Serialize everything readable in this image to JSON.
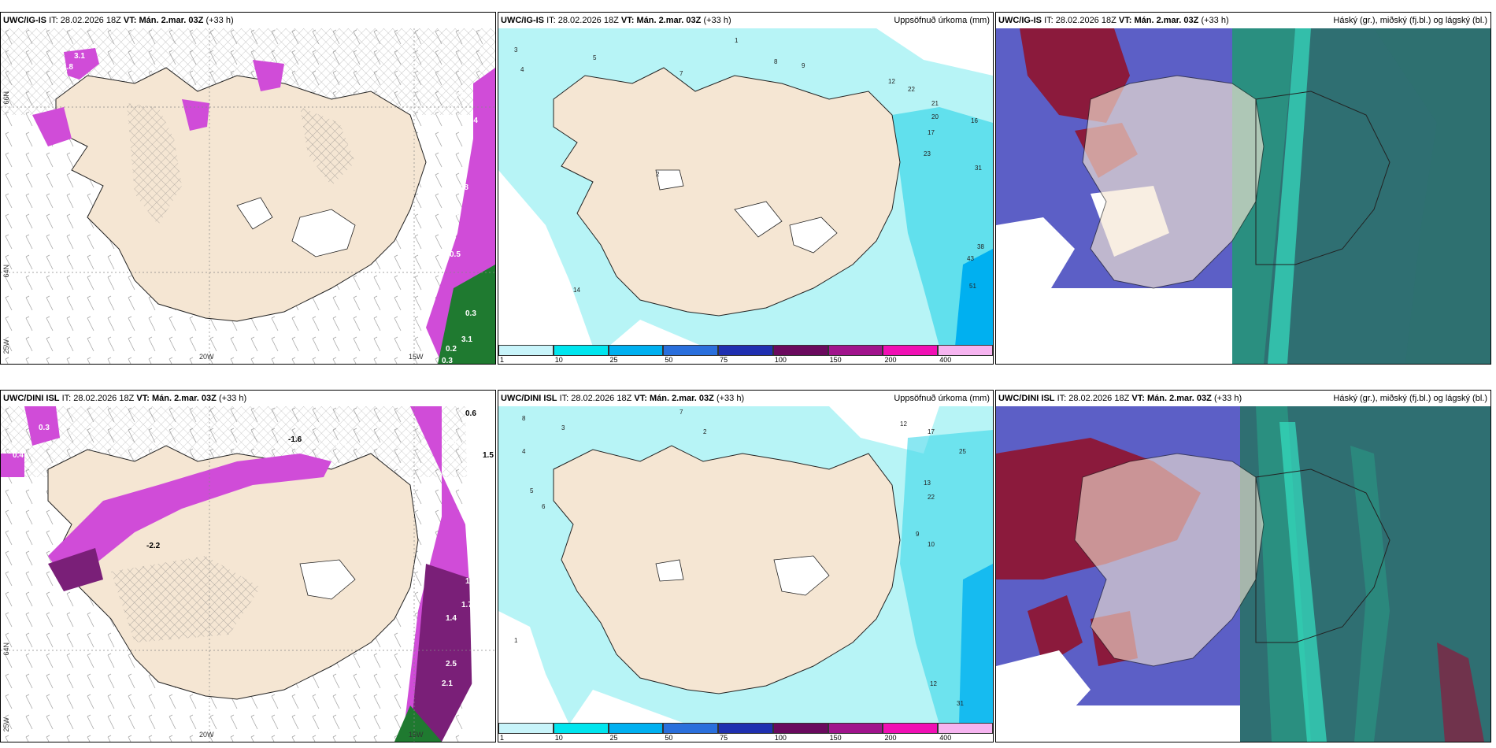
{
  "panels": [
    {
      "model": "UWC/IG-IS",
      "it_label": "IT:",
      "it": "28.02.2026 18Z",
      "vt_label": "VT:",
      "vt": "Mán. 2.mar. 03Z",
      "lead": "(+33 h)",
      "title_right": "",
      "lat_labels": [
        "66N",
        "64N"
      ],
      "lon_labels": [
        "20W",
        "15W",
        "25W"
      ],
      "values": [
        "3.1",
        "1.8",
        "0.3",
        "1.4",
        "0.6",
        "0.8",
        "0.5",
        "0.3",
        "0.2",
        "0.3",
        "3.1"
      ]
    },
    {
      "model": "UWC/IG-IS",
      "it_label": "IT:",
      "it": "28.02.2026 18Z",
      "vt_label": "VT:",
      "vt": "Mán. 2.mar. 03Z",
      "lead": "(+33 h)",
      "title_right": "Uppsöfnuð úrkoma (mm)",
      "values": [
        "1",
        "2",
        "3",
        "4",
        "5",
        "7",
        "8",
        "9",
        "12",
        "16",
        "17",
        "20",
        "21",
        "22",
        "23",
        "31",
        "38",
        "43",
        "51",
        "14"
      ]
    },
    {
      "model": "UWC/IG-IS",
      "it_label": "IT:",
      "it": "28.02.2026 18Z",
      "vt_label": "VT:",
      "vt": "Mán. 2.mar. 03Z",
      "lead": "(+33 h)",
      "title_right": "Háský (gr.), miðský (fj.bl.) og lágský (bl.)"
    },
    {
      "model": "UWC/DINI ISL",
      "it_label": "IT:",
      "it": "28.02.2026 18Z",
      "vt_label": "VT:",
      "vt": "Mán. 2.mar. 03Z",
      "lead": "(+33 h)",
      "title_right": "",
      "lat_labels": [
        "64N"
      ],
      "lon_labels": [
        "20W",
        "15W",
        "25W"
      ],
      "values": [
        "0.3",
        "0.6",
        "0.4",
        "-1.6",
        "0.5",
        "1.5",
        "-2.2",
        "1.9",
        "1.7",
        "1.4",
        "2.5",
        "2.1",
        "0.9"
      ]
    },
    {
      "model": "UWC/DINI ISL",
      "it_label": "IT:",
      "it": "28.02.2026 18Z",
      "vt_label": "VT:",
      "vt": "Mán. 2.mar. 03Z",
      "lead": "(+33 h)",
      "title_right": "Uppsöfnuð úrkoma (mm)",
      "values": [
        "8",
        "7",
        "12",
        "17",
        "25",
        "22",
        "13",
        "10",
        "9",
        "31",
        "4",
        "2",
        "1",
        "3",
        "5",
        "6",
        "12"
      ]
    },
    {
      "model": "UWC/DINI ISL",
      "it_label": "IT:",
      "it": "28.02.2026 18Z",
      "vt_label": "VT:",
      "vt": "Mán. 2.mar. 03Z",
      "lead": "(+33 h)",
      "title_right": "Háský (gr.), miðský (fj.bl.) og lágský (bl.)"
    }
  ],
  "colorbar": {
    "ticks": [
      "1",
      "10",
      "25",
      "50",
      "75",
      "100",
      "150",
      "200",
      "400"
    ],
    "colors": [
      "#c8f4fa",
      "#00e5ee",
      "#00b0f0",
      "#2a6fdc",
      "#1f2fb0",
      "#6a0a5e",
      "#a0148c",
      "#f010b4",
      "#f6b4f0"
    ]
  },
  "colors": {
    "land": "#f5e6d3",
    "wind_barb": "#555555",
    "hatch": "#666666",
    "precip_pink": "#d04cd8",
    "precip_purple": "#7a1f78",
    "precip_green": "#1f7a30",
    "cyan_light": "#b7f4f6",
    "cyan_mid": "#3cd7ea",
    "cloud_high": "#8b1a3c",
    "cloud_mid": "#4a4ec0",
    "cloud_low": "#2f6f72",
    "cloud_teal": "#2a8f80"
  }
}
